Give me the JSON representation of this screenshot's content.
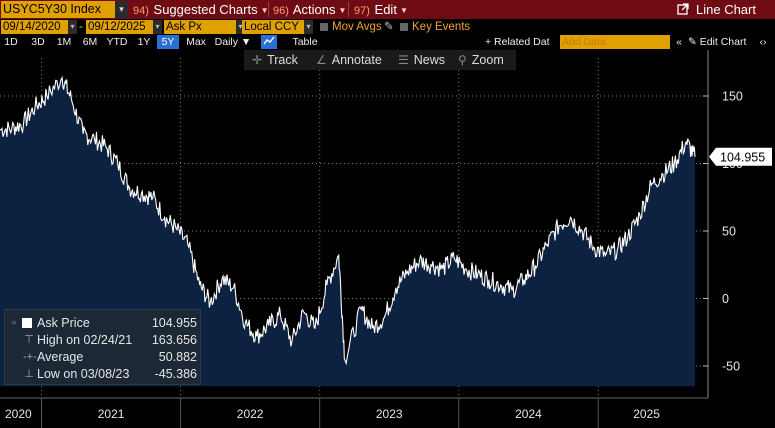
{
  "toolbar": {
    "ticker": "USYC5Y30 Index",
    "menus": [
      {
        "num": "94)",
        "label": "Suggested Charts"
      },
      {
        "num": "96)",
        "label": "Actions"
      },
      {
        "num": "97)",
        "label": "Edit"
      }
    ],
    "line_chart_label": "Line Chart"
  },
  "row2": {
    "start_date": "09/14/2020",
    "end_date": "09/12/2025",
    "field": "Ask Px",
    "currency": "Local CCY",
    "mov_avgs": "Mov Avgs",
    "key_events": "Key Events"
  },
  "row3": {
    "periods": [
      "1D",
      "3D",
      "1M",
      "6M",
      "YTD",
      "1Y",
      "5Y",
      "Max"
    ],
    "selected_period": "5Y",
    "frequency": "Daily",
    "table_label": "Table",
    "related_data": "+ Related Dat",
    "add_data_placeholder": "Add Data",
    "edit_chart": "Edit Chart"
  },
  "chart_tools": [
    "Track",
    "Annotate",
    "News",
    "Zoom"
  ],
  "legend": {
    "rows": [
      {
        "label": "Ask Price",
        "value": "104.955"
      },
      {
        "label": "High on 02/24/21",
        "value": "163.656"
      },
      {
        "label": "Average",
        "value": "50.882"
      },
      {
        "label": "Low on 03/08/23",
        "value": "-45.386"
      }
    ]
  },
  "colors": {
    "area_fill": "#0c2240",
    "line": "#ffffff",
    "title_bar": "#6f0b12",
    "amber": "#e0a000",
    "selected_period": "#2a6fd6"
  },
  "chart_data": {
    "type": "area",
    "title": "USYC5Y30 Index",
    "series": [
      {
        "name": "Ask Price",
        "x": [
          "2020-09-14",
          "2020-10-15",
          "2020-11-15",
          "2020-12-15",
          "2021-01-15",
          "2021-02-24",
          "2021-03-20",
          "2021-04-20",
          "2021-05-20",
          "2021-06-20",
          "2021-07-20",
          "2021-08-20",
          "2021-09-20",
          "2021-10-20",
          "2021-11-20",
          "2021-12-20",
          "2022-01-20",
          "2022-02-20",
          "2022-03-20",
          "2022-04-20",
          "2022-05-20",
          "2022-06-20",
          "2022-07-20",
          "2022-08-20",
          "2022-09-20",
          "2022-10-20",
          "2022-11-20",
          "2022-12-20",
          "2023-01-20",
          "2023-02-20",
          "2023-03-08",
          "2023-04-20",
          "2023-05-20",
          "2023-06-20",
          "2023-07-20",
          "2023-08-20",
          "2023-09-20",
          "2023-10-20",
          "2023-11-20",
          "2023-12-20",
          "2024-01-20",
          "2024-02-20",
          "2024-03-20",
          "2024-04-20",
          "2024-05-20",
          "2024-06-20",
          "2024-07-20",
          "2024-08-20",
          "2024-09-20",
          "2024-10-20",
          "2024-11-20",
          "2024-12-20",
          "2025-01-20",
          "2025-02-20",
          "2025-03-20",
          "2025-04-20",
          "2025-05-20",
          "2025-06-20",
          "2025-07-20",
          "2025-08-20",
          "2025-09-12"
        ],
        "values": [
          125,
          126,
          130,
          142,
          150,
          163.656,
          148,
          122,
          118,
          112,
          100,
          82,
          78,
          75,
          60,
          52,
          40,
          10,
          -3,
          15,
          8,
          -18,
          -28,
          -20,
          -12,
          -32,
          -10,
          -22,
          10,
          32,
          -45.386,
          -8,
          -22,
          -14,
          8,
          20,
          28,
          25,
          22,
          30,
          22,
          18,
          14,
          10,
          6,
          14,
          24,
          40,
          54,
          60,
          50,
          38,
          32,
          36,
          46,
          62,
          84,
          92,
          100,
          116,
          104.955
        ]
      }
    ],
    "xlabel": "",
    "ylabel": "",
    "ylim": [
      -65,
      185
    ],
    "yticks": [
      -50,
      0,
      50,
      100,
      150
    ],
    "xticks": [
      "2020",
      "2021",
      "2022",
      "2023",
      "2024",
      "2025"
    ],
    "last_value_label": "104.955",
    "grid": true
  }
}
